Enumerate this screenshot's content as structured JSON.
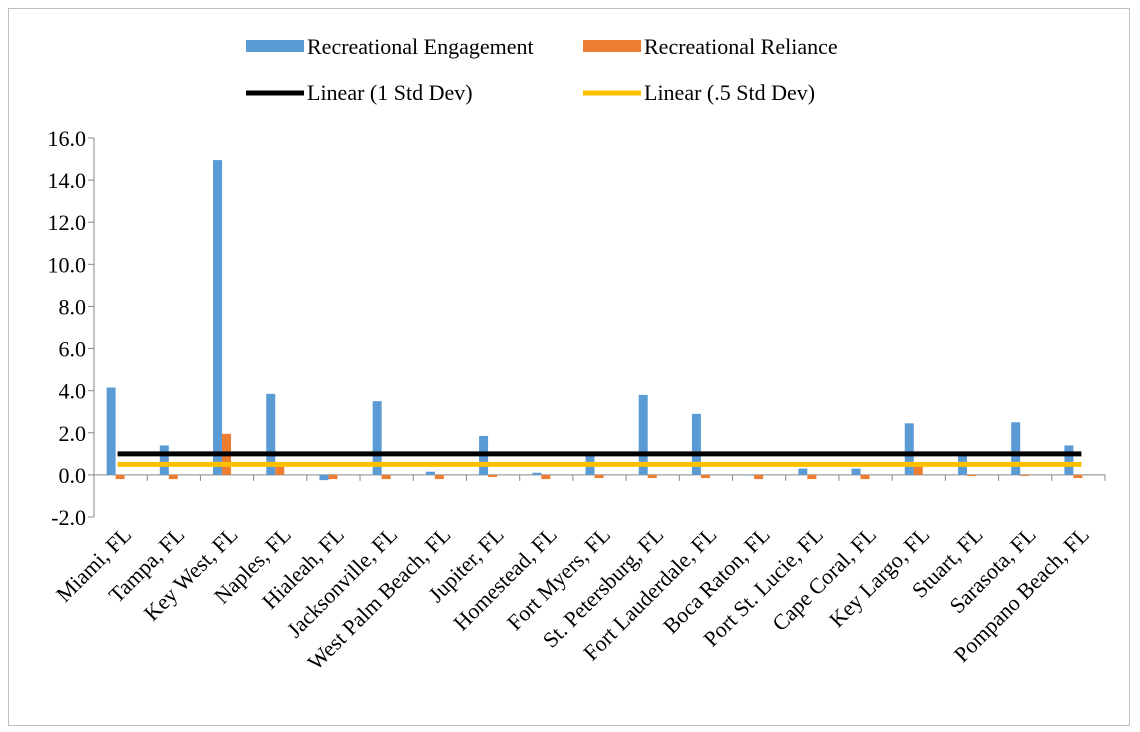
{
  "chart_data": {
    "type": "bar",
    "categories": [
      "Miami, FL",
      "Tampa, FL",
      "Key West, FL",
      "Naples, FL",
      "Hialeah, FL",
      "Jacksonville, FL",
      "West Palm Beach, FL",
      "Jupiter, FL",
      "Homestead, FL",
      "Fort Myers, FL",
      "St. Petersburg, FL",
      "Fort Lauderdale, FL",
      "Boca Raton, FL",
      "Port St. Lucie, FL",
      "Cape Coral, FL",
      "Key Largo, FL",
      "Stuart, FL",
      "Sarasota, FL",
      "Pompano Beach, FL"
    ],
    "series": [
      {
        "name": "Recreational Engagement",
        "color": "#5b9bd5",
        "values": [
          4.15,
          1.4,
          14.95,
          3.85,
          -0.25,
          3.5,
          0.15,
          1.85,
          0.1,
          0.9,
          3.8,
          2.9,
          0.0,
          0.3,
          0.3,
          2.45,
          0.9,
          2.5,
          1.4
        ]
      },
      {
        "name": "Recreational Reliance",
        "color": "#ed7d31",
        "values": [
          -0.2,
          -0.2,
          1.95,
          0.5,
          -0.2,
          -0.2,
          -0.2,
          -0.1,
          -0.2,
          -0.15,
          -0.15,
          -0.15,
          -0.2,
          -0.2,
          -0.2,
          0.5,
          -0.05,
          -0.05,
          -0.15
        ]
      }
    ],
    "lines": [
      {
        "name": "Linear (1 Std Dev)",
        "color": "#000000",
        "value": 1.0
      },
      {
        "name": "Linear (.5 Std Dev)",
        "color": "#ffc000",
        "value": 0.5
      }
    ],
    "yticks": [
      "16.0",
      "14.0",
      "12.0",
      "10.0",
      "8.0",
      "6.0",
      "4.0",
      "2.0",
      "0.0",
      "-2.0"
    ],
    "ylim": [
      -2,
      16
    ],
    "grid": false,
    "legend_position": "top"
  }
}
